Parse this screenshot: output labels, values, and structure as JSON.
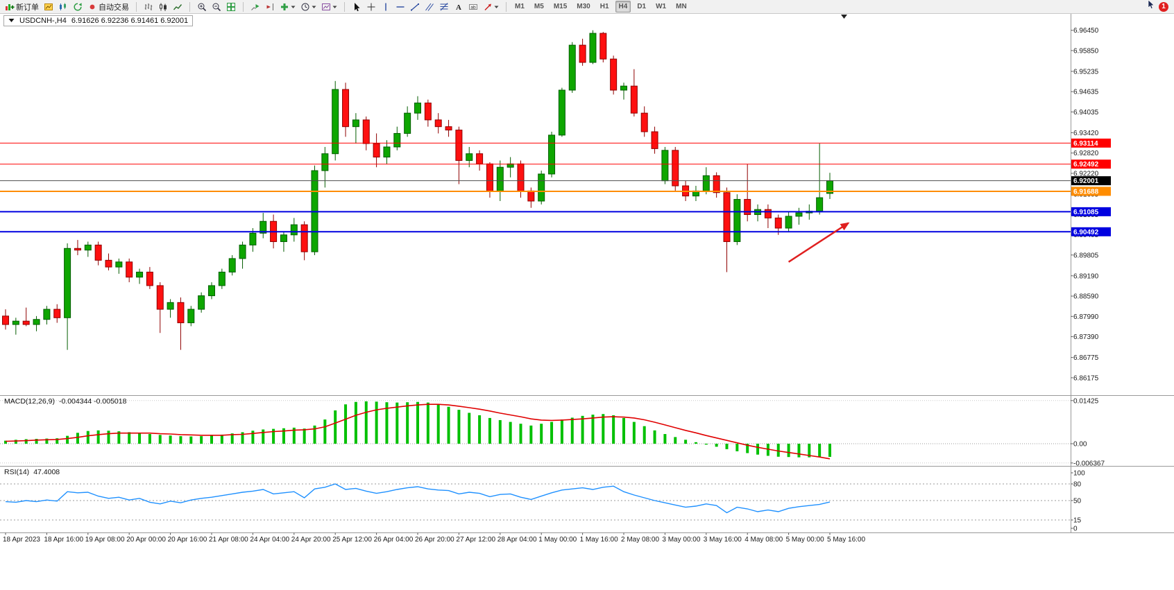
{
  "toolbar": {
    "groups": [
      {
        "name": "trade",
        "items": [
          {
            "name": "new-order",
            "icon": "new-order",
            "label": "新订单"
          },
          {
            "name": "charts",
            "icon": "chart-window"
          },
          {
            "name": "market-watch",
            "icon": "market-watch"
          },
          {
            "name": "refresh",
            "icon": "refresh"
          },
          {
            "name": "autotrading",
            "icon": "autotrading",
            "label": "自动交易"
          }
        ]
      },
      {
        "name": "chart-types",
        "items": [
          {
            "name": "bar-chart",
            "icon": "bar-chart"
          },
          {
            "name": "candlestick-chart",
            "icon": "candlestick"
          },
          {
            "name": "line-chart",
            "icon": "line-chart"
          }
        ]
      },
      {
        "name": "zoom",
        "items": [
          {
            "name": "zoom-in",
            "icon": "zoom-in"
          },
          {
            "name": "zoom-out",
            "icon": "zoom-out"
          },
          {
            "name": "tile-windows",
            "icon": "tile-windows"
          }
        ]
      },
      {
        "name": "chart-controls",
        "items": [
          {
            "name": "auto-scroll",
            "icon": "auto-scroll"
          },
          {
            "name": "chart-shift",
            "icon": "chart-shift"
          },
          {
            "name": "indicators-list",
            "icon": "indicators",
            "dropdown": true
          },
          {
            "name": "periods",
            "icon": "clock",
            "dropdown": true
          },
          {
            "name": "templates",
            "icon": "template",
            "dropdown": true
          }
        ]
      },
      {
        "name": "drawing-tools",
        "items": [
          {
            "name": "cursor",
            "icon": "cursor"
          },
          {
            "name": "crosshair",
            "icon": "crosshair"
          },
          {
            "name": "vertical-line-tool",
            "icon": "vertical-line"
          },
          {
            "name": "horizontal-line-tool",
            "icon": "horizontal-line"
          },
          {
            "name": "trendline-tool",
            "icon": "trendline"
          },
          {
            "name": "channel-tool",
            "icon": "channel"
          },
          {
            "name": "fibonacci-tool",
            "icon": "fibonacci"
          },
          {
            "name": "text-tool",
            "icon": "text"
          },
          {
            "name": "label-tool",
            "icon": "text-label"
          },
          {
            "name": "shapes-tool",
            "icon": "arrow-shape",
            "dropdown": true
          }
        ]
      },
      {
        "name": "timeframes",
        "items": [
          {
            "name": "timeframe-M1",
            "label": "M1"
          },
          {
            "name": "timeframe-M5",
            "label": "M5"
          },
          {
            "name": "timeframe-M15",
            "label": "M15"
          },
          {
            "name": "timeframe-M30",
            "label": "M30"
          },
          {
            "name": "timeframe-H1",
            "label": "H1"
          },
          {
            "name": "timeframe-H4",
            "label": "H4",
            "active": true
          },
          {
            "name": "timeframe-D1",
            "label": "D1"
          },
          {
            "name": "timeframe-W1",
            "label": "W1"
          },
          {
            "name": "timeframe-MN",
            "label": "MN"
          }
        ]
      }
    ],
    "notification_badge": "1"
  },
  "chart_data": {
    "type": "candlestick",
    "symbol_title": "USDCNH-,H4",
    "ohlc_title": "6.91626 6.92236 6.91461 6.92001",
    "timeframe": "H4",
    "colors": {
      "bull": "#0EA600",
      "bull_border": "#045D00",
      "bear": "#FE1010",
      "bear_border": "#8F0000",
      "macd_hist": "#00C000",
      "macd_signal": "#E00000",
      "rsi_line": "#1E90FF",
      "line_red": "#FF0000",
      "line_blue": "#0000E0",
      "line_orange": "#FF8C00",
      "current_price_line": "#4D4D4D",
      "current_price_box": "#000000"
    },
    "price_axis": {
      "labels": [
        "6.96450",
        "6.95850",
        "6.95235",
        "6.94635",
        "6.94035",
        "6.93420",
        "6.92820",
        "6.92220",
        "6.91605",
        "6.91005",
        "6.90405",
        "6.89805",
        "6.89190",
        "6.88590",
        "6.87990",
        "6.87390",
        "6.86775",
        "6.86175"
      ]
    },
    "candles": [
      [
        6.88,
        6.882,
        6.876,
        6.8775
      ],
      [
        6.8775,
        6.8795,
        6.8745,
        6.8785
      ],
      [
        6.8785,
        6.8825,
        6.877,
        6.8775
      ],
      [
        6.8775,
        6.88,
        6.8755,
        6.879
      ],
      [
        6.879,
        6.883,
        6.8775,
        6.882
      ],
      [
        6.882,
        6.8835,
        6.878,
        6.8795
      ],
      [
        6.8795,
        6.9015,
        6.87,
        6.9
      ],
      [
        6.9,
        6.9025,
        6.898,
        6.8995
      ],
      [
        6.8995,
        6.902,
        6.8975,
        6.901
      ],
      [
        6.901,
        6.902,
        6.895,
        6.8965
      ],
      [
        6.8965,
        6.8985,
        6.8935,
        6.8945
      ],
      [
        6.8945,
        6.897,
        6.8925,
        6.896
      ],
      [
        6.896,
        6.897,
        6.89,
        6.8915
      ],
      [
        6.8915,
        6.894,
        6.8895,
        6.893
      ],
      [
        6.893,
        6.8945,
        6.888,
        6.889
      ],
      [
        6.889,
        6.89,
        6.875,
        6.882
      ],
      [
        6.882,
        6.885,
        6.8795,
        6.884
      ],
      [
        6.884,
        6.8855,
        6.87,
        6.878
      ],
      [
        6.878,
        6.883,
        6.877,
        6.882
      ],
      [
        6.882,
        6.887,
        6.881,
        6.886
      ],
      [
        6.886,
        6.89,
        6.885,
        6.889
      ],
      [
        6.889,
        6.894,
        6.888,
        6.893
      ],
      [
        6.893,
        6.898,
        6.892,
        6.897
      ],
      [
        6.897,
        6.902,
        6.894,
        6.901
      ],
      [
        6.901,
        6.906,
        6.899,
        6.9045
      ],
      [
        6.9045,
        6.9105,
        6.903,
        6.908
      ],
      [
        6.908,
        6.91,
        6.9,
        6.902
      ],
      [
        6.902,
        6.905,
        6.899,
        6.904
      ],
      [
        6.904,
        6.909,
        6.902,
        6.907
      ],
      [
        6.907,
        6.908,
        6.8965,
        6.899
      ],
      [
        6.899,
        6.9245,
        6.898,
        6.923
      ],
      [
        6.923,
        6.93,
        6.918,
        6.928
      ],
      [
        6.928,
        6.9495,
        6.926,
        6.947
      ],
      [
        6.947,
        6.949,
        6.933,
        6.936
      ],
      [
        6.936,
        6.94,
        6.931,
        6.938
      ],
      [
        6.938,
        6.939,
        6.929,
        6.931
      ],
      [
        6.931,
        6.934,
        6.924,
        6.927
      ],
      [
        6.927,
        6.932,
        6.925,
        6.93
      ],
      [
        6.93,
        6.936,
        6.929,
        6.934
      ],
      [
        6.934,
        6.942,
        6.933,
        6.94
      ],
      [
        6.94,
        6.945,
        6.938,
        6.943
      ],
      [
        6.943,
        6.944,
        6.936,
        6.938
      ],
      [
        6.938,
        6.94,
        6.934,
        6.936
      ],
      [
        6.936,
        6.938,
        6.933,
        6.935
      ],
      [
        6.935,
        6.936,
        6.919,
        6.926
      ],
      [
        6.926,
        6.93,
        6.924,
        6.928
      ],
      [
        6.928,
        6.929,
        6.923,
        6.925
      ],
      [
        6.925,
        6.9255,
        6.915,
        6.917
      ],
      [
        6.917,
        6.926,
        6.914,
        6.924
      ],
      [
        6.924,
        6.927,
        6.921,
        6.925
      ],
      [
        6.925,
        6.926,
        6.915,
        6.917
      ],
      [
        6.917,
        6.918,
        6.912,
        6.914
      ],
      [
        6.914,
        6.923,
        6.913,
        6.922
      ],
      [
        6.922,
        6.9345,
        6.921,
        6.9335
      ],
      [
        6.9335,
        6.9475,
        6.933,
        6.9468
      ],
      [
        6.9468,
        6.961,
        6.946,
        6.9601
      ],
      [
        6.9601,
        6.962,
        6.954,
        6.955
      ],
      [
        6.955,
        6.9645,
        6.9545,
        6.9636
      ],
      [
        6.9636,
        6.964,
        6.955,
        6.956
      ],
      [
        6.956,
        6.957,
        6.9455,
        6.9468
      ],
      [
        6.9468,
        6.949,
        6.944,
        6.948
      ],
      [
        6.948,
        6.953,
        6.939,
        6.94
      ],
      [
        6.94,
        6.942,
        6.933,
        6.9345
      ],
      [
        6.9345,
        6.936,
        6.928,
        6.9295
      ],
      [
        6.92,
        6.93,
        6.919,
        6.929
      ],
      [
        6.929,
        6.93,
        6.917,
        6.9185
      ],
      [
        6.9185,
        6.92,
        6.914,
        6.9155
      ],
      [
        6.9155,
        6.9185,
        6.914,
        6.917
      ],
      [
        6.917,
        6.924,
        6.916,
        6.9215
      ],
      [
        6.9215,
        6.9225,
        6.915,
        6.9165
      ],
      [
        6.9165,
        6.918,
        6.893,
        6.902
      ],
      [
        6.902,
        6.916,
        6.901,
        6.9145
      ],
      [
        6.9145,
        6.925,
        6.908,
        6.91
      ],
      [
        6.91,
        6.913,
        6.908,
        6.9115
      ],
      [
        6.9115,
        6.913,
        6.906,
        6.909
      ],
      [
        6.909,
        6.91,
        6.904,
        6.906
      ],
      [
        6.906,
        6.911,
        6.905,
        6.9095
      ],
      [
        6.9095,
        6.912,
        6.907,
        6.9105
      ],
      [
        6.9105,
        6.913,
        6.9085,
        6.911
      ],
      [
        6.911,
        6.931,
        6.91,
        6.915
      ],
      [
        6.91626,
        6.92236,
        6.91461,
        6.92001
      ]
    ],
    "hlines": [
      {
        "name": "resistance-line-1",
        "price": 6.93114,
        "label": "6.93114",
        "color": "#FF0000",
        "width": 1
      },
      {
        "name": "resistance-line-2",
        "price": 6.92492,
        "label": "6.92492",
        "color": "#FF0000",
        "width": 1
      },
      {
        "name": "current-price-line",
        "price": 6.92001,
        "label": "6.92001",
        "color": "#4D4D4D",
        "box": "#000000",
        "width": 1
      },
      {
        "name": "support-line-orange",
        "price": 6.91688,
        "label": "6.91688",
        "color": "#FF8C00",
        "width": 2
      },
      {
        "name": "support-line-blue-1",
        "price": 6.91085,
        "label": "6.91085",
        "color": "#0000E0",
        "width": 2
      },
      {
        "name": "support-line-blue-2",
        "price": 6.90492,
        "label": "6.90492",
        "color": "#0000E0",
        "width": 2
      }
    ],
    "annotations": {
      "arrow": {
        "from_index": 76,
        "from_price": 6.896,
        "to_index": 81.8,
        "to_price": 6.9075,
        "color": "#E02020"
      }
    },
    "macd": {
      "title": "MACD(12,26,9)",
      "values_text": "-0.004344 -0.005018",
      "axis_labels": [
        "0.01425",
        "0.00",
        "-0.006367"
      ],
      "histogram": [
        0.001,
        0.0013,
        0.0015,
        0.0016,
        0.0017,
        0.0018,
        0.0026,
        0.0036,
        0.0042,
        0.0044,
        0.0043,
        0.0041,
        0.0038,
        0.0035,
        0.0032,
        0.0029,
        0.0027,
        0.0025,
        0.0024,
        0.0025,
        0.0027,
        0.003,
        0.0034,
        0.0038,
        0.0043,
        0.0047,
        0.0049,
        0.0051,
        0.0053,
        0.005,
        0.006,
        0.008,
        0.011,
        0.013,
        0.0138,
        0.014,
        0.0139,
        0.0137,
        0.0136,
        0.0137,
        0.0138,
        0.0136,
        0.013,
        0.0122,
        0.0112,
        0.0102,
        0.0094,
        0.0085,
        0.0078,
        0.0072,
        0.0066,
        0.006,
        0.0066,
        0.0072,
        0.008,
        0.0086,
        0.0092,
        0.0096,
        0.0098,
        0.0094,
        0.0085,
        0.0072,
        0.0058,
        0.0044,
        0.0032,
        0.0022,
        0.0013,
        0.0005,
        -0.0003,
        -0.001,
        -0.0018,
        -0.0025,
        -0.0031,
        -0.0036,
        -0.004,
        -0.0043,
        -0.0044,
        -0.0045,
        -0.0045,
        -0.0044,
        -0.004344
      ],
      "signal": [
        0.0008,
        0.0009,
        0.001,
        0.0012,
        0.0013,
        0.0014,
        0.0017,
        0.0021,
        0.0026,
        0.003,
        0.0033,
        0.0035,
        0.0035,
        0.0035,
        0.0035,
        0.0033,
        0.0032,
        0.003,
        0.0029,
        0.0028,
        0.0028,
        0.0028,
        0.003,
        0.0031,
        0.0034,
        0.0037,
        0.004,
        0.0042,
        0.0045,
        0.0046,
        0.0049,
        0.0056,
        0.0068,
        0.0081,
        0.0094,
        0.0104,
        0.0112,
        0.0117,
        0.0121,
        0.0125,
        0.0128,
        0.013,
        0.013,
        0.0128,
        0.0124,
        0.0119,
        0.0114,
        0.0108,
        0.0101,
        0.0095,
        0.0089,
        0.0082,
        0.0078,
        0.0077,
        0.0078,
        0.008,
        0.0082,
        0.0085,
        0.0088,
        0.0089,
        0.0088,
        0.0085,
        0.0079,
        0.0071,
        0.0062,
        0.0053,
        0.0044,
        0.0036,
        0.0027,
        0.0019,
        0.0011,
        0.0003,
        -0.0005,
        -0.0012,
        -0.0018,
        -0.0024,
        -0.0029,
        -0.0034,
        -0.0039,
        -0.0044,
        -0.005
      ]
    },
    "rsi": {
      "title": "RSI(14)",
      "value_text": "47.4008",
      "levels": [
        80,
        50,
        15
      ],
      "axis_labels": [
        "100",
        "80",
        "50",
        "15",
        "0"
      ],
      "values": [
        48,
        47,
        50,
        48,
        51,
        49,
        66,
        64,
        65,
        58,
        54,
        56,
        51,
        54,
        47,
        44,
        49,
        46,
        51,
        54,
        56,
        59,
        62,
        65,
        67,
        70,
        62,
        64,
        66,
        55,
        71,
        74,
        80,
        70,
        72,
        67,
        63,
        66,
        70,
        73,
        75,
        71,
        69,
        68,
        62,
        65,
        63,
        57,
        61,
        62,
        56,
        52,
        58,
        64,
        69,
        71,
        73,
        70,
        74,
        76,
        66,
        60,
        55,
        50,
        46,
        42,
        38,
        40,
        44,
        41,
        28,
        38,
        35,
        30,
        33,
        30,
        36,
        39,
        41,
        43,
        47.4
      ]
    },
    "time_axis": {
      "labels": [
        "18 Apr 2023",
        "18 Apr 16:00",
        "19 Apr 08:00",
        "20 Apr 00:00",
        "20 Apr 16:00",
        "21 Apr 08:00",
        "24 Apr 04:00",
        "24 Apr 20:00",
        "25 Apr 12:00",
        "26 Apr 04:00",
        "26 Apr 20:00",
        "27 Apr 12:00",
        "28 Apr 04:00",
        "1 May 00:00",
        "1 May 16:00",
        "2 May 08:00",
        "3 May 00:00",
        "3 May 16:00",
        "4 May 08:00",
        "5 May 00:00",
        "5 May 16:00"
      ]
    }
  }
}
